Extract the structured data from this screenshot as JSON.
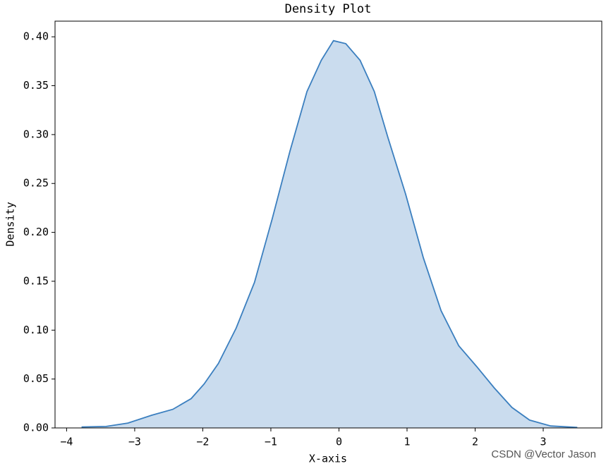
{
  "chart_data": {
    "type": "density",
    "title": "Density Plot",
    "x_label": "X-axis",
    "y_label": "Density",
    "watermark": "CSDN @Vector Jason",
    "color": "#3b7fbf",
    "x": [
      -3.78,
      -3.42,
      -3.1,
      -2.75,
      -2.44,
      -2.17,
      -1.98,
      -1.77,
      -1.51,
      -1.24,
      -0.98,
      -0.72,
      -0.47,
      -0.26,
      -0.08,
      0.1,
      0.31,
      0.52,
      0.72,
      0.98,
      1.24,
      1.5,
      1.76,
      2.02,
      2.28,
      2.54,
      2.8,
      3.11,
      3.5
    ],
    "values": [
      0.001,
      0.0015,
      0.005,
      0.013,
      0.019,
      0.03,
      0.045,
      0.066,
      0.102,
      0.149,
      0.214,
      0.283,
      0.344,
      0.376,
      0.396,
      0.393,
      0.376,
      0.344,
      0.297,
      0.239,
      0.174,
      0.12,
      0.084,
      0.063,
      0.041,
      0.021,
      0.008,
      0.002,
      0.0005
    ],
    "xlim": [
      -4.17,
      3.86
    ],
    "ylim": [
      0,
      0.416
    ],
    "xticks": [
      {
        "value": -4,
        "label": "−4"
      },
      {
        "value": -3,
        "label": "−3"
      },
      {
        "value": -2,
        "label": "−2"
      },
      {
        "value": -1,
        "label": "−1"
      },
      0,
      1,
      2,
      3
    ],
    "yticks": [
      {
        "value": 0,
        "label": "0.00"
      },
      0.05,
      {
        "value": 0.1,
        "label": "0.10"
      },
      0.15,
      {
        "value": 0.2,
        "label": "0.20"
      },
      0.25,
      {
        "value": 0.3,
        "label": "0.30"
      },
      0.35,
      {
        "value": 0.4,
        "label": "0.40"
      }
    ]
  }
}
